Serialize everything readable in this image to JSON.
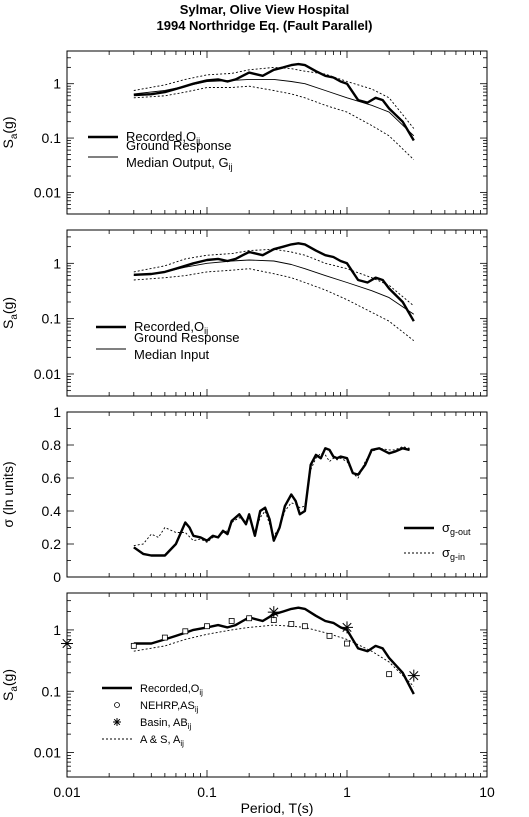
{
  "title_line1": "Sylmar, Olive View Hospital",
  "title_line2": "1994 Northridge Eq. (Fault Parallel)",
  "chart_data": [
    {
      "type": "line",
      "xscale": "log",
      "yscale": "log",
      "xlim": [
        0.01,
        10
      ],
      "ylim": [
        0.004,
        4
      ],
      "ylabel": "S",
      "ylabel_sub": "a",
      "ylabel_suffix": "(g)",
      "ytick_values": [
        0.01,
        0.1,
        1
      ],
      "ytick_labels": [
        "0.01",
        "0.1",
        "1"
      ],
      "series": [
        {
          "style": "thick",
          "x": [
            0.03,
            0.04,
            0.05,
            0.06,
            0.07,
            0.08,
            0.1,
            0.12,
            0.14,
            0.16,
            0.18,
            0.2,
            0.25,
            0.3,
            0.35,
            0.4,
            0.45,
            0.5,
            0.6,
            0.7,
            0.8,
            0.9,
            1.0,
            1.2,
            1.4,
            1.6,
            1.8,
            2.0,
            2.5,
            3.0
          ],
          "y": [
            0.62,
            0.64,
            0.7,
            0.8,
            0.9,
            1.0,
            1.15,
            1.2,
            1.1,
            1.2,
            1.4,
            1.6,
            1.4,
            1.8,
            2.0,
            2.2,
            2.3,
            2.2,
            1.7,
            1.4,
            1.3,
            1.1,
            1.0,
            0.5,
            0.45,
            0.55,
            0.5,
            0.35,
            0.2,
            0.09
          ]
        },
        {
          "style": "thin",
          "x": [
            0.03,
            0.05,
            0.07,
            0.1,
            0.15,
            0.2,
            0.3,
            0.4,
            0.5,
            0.7,
            1.0,
            1.5,
            2.0,
            3.0
          ],
          "y": [
            0.65,
            0.75,
            0.9,
            1.1,
            1.15,
            1.2,
            1.2,
            1.1,
            1.0,
            0.75,
            0.55,
            0.4,
            0.3,
            0.11
          ]
        },
        {
          "style": "dotted",
          "x": [
            0.03,
            0.05,
            0.07,
            0.1,
            0.15,
            0.2,
            0.3,
            0.4,
            0.5,
            0.7,
            1.0,
            1.5,
            2.0,
            3.0
          ],
          "y": [
            0.75,
            0.95,
            1.2,
            1.45,
            1.55,
            1.8,
            2.0,
            1.9,
            1.7,
            1.5,
            1.1,
            0.8,
            0.55,
            0.15
          ]
        },
        {
          "style": "dotted",
          "x": [
            0.03,
            0.05,
            0.07,
            0.1,
            0.15,
            0.2,
            0.3,
            0.4,
            0.5,
            0.7,
            1.0,
            1.5,
            2.0,
            3.0
          ],
          "y": [
            0.55,
            0.6,
            0.7,
            0.85,
            0.85,
            0.9,
            0.75,
            0.65,
            0.55,
            0.4,
            0.3,
            0.17,
            0.11,
            0.04
          ]
        }
      ],
      "legend": [
        {
          "style": "thick",
          "lines": [
            "Recorded,O"
          ],
          "sub": "ij"
        },
        {
          "style": "thin",
          "lines": [
            "Ground Response",
            "Median Output, G"
          ],
          "sub": "ij"
        }
      ]
    },
    {
      "type": "line",
      "xscale": "log",
      "yscale": "log",
      "xlim": [
        0.01,
        10
      ],
      "ylim": [
        0.004,
        4
      ],
      "ylabel": "S",
      "ylabel_sub": "a",
      "ylabel_suffix": "(g)",
      "ytick_values": [
        0.01,
        0.1,
        1
      ],
      "ytick_labels": [
        "0.01",
        "0.1",
        "1"
      ],
      "series": [
        {
          "style": "thick",
          "x": [
            0.03,
            0.04,
            0.05,
            0.06,
            0.07,
            0.08,
            0.1,
            0.12,
            0.14,
            0.16,
            0.18,
            0.2,
            0.25,
            0.3,
            0.35,
            0.4,
            0.45,
            0.5,
            0.6,
            0.7,
            0.8,
            0.9,
            1.0,
            1.2,
            1.4,
            1.6,
            1.8,
            2.0,
            2.5,
            3.0
          ],
          "y": [
            0.62,
            0.64,
            0.7,
            0.8,
            0.9,
            1.0,
            1.15,
            1.2,
            1.1,
            1.2,
            1.4,
            1.6,
            1.4,
            1.8,
            2.0,
            2.2,
            2.3,
            2.2,
            1.7,
            1.4,
            1.3,
            1.1,
            1.0,
            0.5,
            0.45,
            0.55,
            0.5,
            0.35,
            0.2,
            0.09
          ]
        },
        {
          "style": "thin",
          "x": [
            0.03,
            0.05,
            0.07,
            0.1,
            0.15,
            0.2,
            0.3,
            0.4,
            0.5,
            0.7,
            1.0,
            1.5,
            2.0,
            3.0
          ],
          "y": [
            0.6,
            0.7,
            0.85,
            1.0,
            1.1,
            1.15,
            1.1,
            0.95,
            0.8,
            0.6,
            0.45,
            0.32,
            0.24,
            0.12
          ]
        },
        {
          "style": "dotted",
          "x": [
            0.03,
            0.05,
            0.07,
            0.1,
            0.15,
            0.2,
            0.3,
            0.4,
            0.5,
            0.7,
            1.0,
            1.5,
            2.0,
            3.0
          ],
          "y": [
            0.7,
            0.9,
            1.2,
            1.4,
            1.5,
            1.7,
            1.8,
            1.6,
            1.4,
            1.0,
            0.8,
            0.55,
            0.4,
            0.17
          ]
        },
        {
          "style": "dotted",
          "x": [
            0.03,
            0.05,
            0.07,
            0.1,
            0.15,
            0.2,
            0.3,
            0.4,
            0.5,
            0.7,
            1.0,
            1.5,
            2.0,
            3.0
          ],
          "y": [
            0.5,
            0.55,
            0.6,
            0.7,
            0.75,
            0.8,
            0.65,
            0.55,
            0.45,
            0.33,
            0.22,
            0.13,
            0.09,
            0.04
          ]
        }
      ],
      "legend": [
        {
          "style": "thick",
          "lines": [
            "Recorded,O"
          ],
          "sub": "ij"
        },
        {
          "style": "thin",
          "lines": [
            "Ground Response",
            "Median Input"
          ],
          "sub": ""
        }
      ]
    },
    {
      "type": "line",
      "xscale": "log",
      "yscale": "linear",
      "xlim": [
        0.01,
        10
      ],
      "ylim": [
        0,
        1
      ],
      "ylabel": "σ (ln units)",
      "ylabel_sub": "",
      "ylabel_suffix": "",
      "ytick_values": [
        0,
        0.2,
        0.4,
        0.6,
        0.8,
        1
      ],
      "ytick_labels": [
        "0",
        "0.2",
        "0.4",
        "0.6",
        "0.8",
        "1"
      ],
      "series": [
        {
          "style": "thick",
          "x": [
            0.03,
            0.035,
            0.04,
            0.05,
            0.06,
            0.07,
            0.075,
            0.08,
            0.09,
            0.1,
            0.11,
            0.12,
            0.13,
            0.14,
            0.15,
            0.17,
            0.19,
            0.2,
            0.22,
            0.24,
            0.26,
            0.28,
            0.3,
            0.33,
            0.36,
            0.4,
            0.43,
            0.46,
            0.5,
            0.55,
            0.6,
            0.65,
            0.7,
            0.75,
            0.8,
            0.85,
            0.9,
            1.0,
            1.1,
            1.2,
            1.35,
            1.5,
            1.7,
            2.0,
            2.2,
            2.5,
            2.8
          ],
          "y": [
            0.18,
            0.14,
            0.13,
            0.13,
            0.2,
            0.33,
            0.3,
            0.25,
            0.24,
            0.22,
            0.25,
            0.24,
            0.28,
            0.26,
            0.34,
            0.38,
            0.32,
            0.38,
            0.25,
            0.4,
            0.42,
            0.35,
            0.22,
            0.3,
            0.43,
            0.5,
            0.46,
            0.38,
            0.4,
            0.68,
            0.74,
            0.72,
            0.78,
            0.77,
            0.73,
            0.72,
            0.73,
            0.72,
            0.63,
            0.62,
            0.68,
            0.77,
            0.78,
            0.75,
            0.76,
            0.78,
            0.77
          ]
        },
        {
          "style": "dotted",
          "x": [
            0.03,
            0.035,
            0.04,
            0.045,
            0.05,
            0.06,
            0.07,
            0.08,
            0.09,
            0.1,
            0.11,
            0.12,
            0.13,
            0.14,
            0.15,
            0.17,
            0.19,
            0.2,
            0.22,
            0.24,
            0.26,
            0.28,
            0.3,
            0.33,
            0.36,
            0.4,
            0.43,
            0.46,
            0.5,
            0.55,
            0.6,
            0.65,
            0.7,
            0.75,
            0.8,
            0.85,
            0.9,
            1.0,
            1.1,
            1.2,
            1.35,
            1.5,
            1.7,
            2.0,
            2.2,
            2.5,
            2.8
          ],
          "y": [
            0.19,
            0.2,
            0.26,
            0.24,
            0.3,
            0.27,
            0.27,
            0.22,
            0.23,
            0.21,
            0.24,
            0.24,
            0.27,
            0.28,
            0.33,
            0.36,
            0.34,
            0.37,
            0.27,
            0.36,
            0.4,
            0.32,
            0.25,
            0.3,
            0.4,
            0.45,
            0.44,
            0.42,
            0.43,
            0.65,
            0.72,
            0.75,
            0.74,
            0.7,
            0.72,
            0.71,
            0.72,
            0.7,
            0.63,
            0.6,
            0.7,
            0.76,
            0.78,
            0.77,
            0.77,
            0.79,
            0.78
          ]
        }
      ],
      "legend": [
        {
          "style": "thick",
          "lines": [
            "σ"
          ],
          "sub": "g-out"
        },
        {
          "style": "dotted",
          "lines": [
            "σ"
          ],
          "sub": "g-in"
        }
      ]
    },
    {
      "type": "line",
      "xscale": "log",
      "yscale": "log",
      "xlim": [
        0.01,
        10
      ],
      "ylim": [
        0.004,
        4
      ],
      "ylabel": "S",
      "ylabel_sub": "a",
      "ylabel_suffix": "(g)",
      "ytick_values": [
        0.01,
        0.1,
        1
      ],
      "ytick_labels": [
        "0.01",
        "0.1",
        "1"
      ],
      "xtick_values": [
        0.01,
        0.1,
        1,
        10
      ],
      "xtick_labels": [
        "0.01",
        "0.1",
        "1",
        "10"
      ],
      "xlabel": "Period, T(s)",
      "series": [
        {
          "style": "thick",
          "x": [
            0.03,
            0.04,
            0.05,
            0.06,
            0.07,
            0.08,
            0.1,
            0.12,
            0.14,
            0.16,
            0.18,
            0.2,
            0.25,
            0.3,
            0.35,
            0.4,
            0.45,
            0.5,
            0.6,
            0.7,
            0.8,
            0.9,
            1.0,
            1.2,
            1.4,
            1.6,
            1.8,
            2.0,
            2.5,
            3.0
          ],
          "y": [
            0.6,
            0.6,
            0.7,
            0.8,
            0.9,
            1.0,
            1.1,
            1.2,
            1.1,
            1.2,
            1.4,
            1.6,
            1.4,
            1.8,
            2.0,
            2.2,
            2.3,
            2.2,
            1.7,
            1.4,
            1.3,
            1.1,
            1.0,
            0.5,
            0.45,
            0.55,
            0.5,
            0.35,
            0.2,
            0.09
          ]
        },
        {
          "style": "dotted",
          "x": [
            0.03,
            0.05,
            0.07,
            0.1,
            0.15,
            0.2,
            0.3,
            0.4,
            0.5,
            0.7,
            1.0,
            1.5,
            2.0,
            3.0
          ],
          "y": [
            0.45,
            0.55,
            0.7,
            0.85,
            1.0,
            1.1,
            1.2,
            1.15,
            1.1,
            0.9,
            0.7,
            0.45,
            0.3,
            0.12
          ]
        },
        {
          "style": "square",
          "x": [
            0.03,
            0.05,
            0.07,
            0.1,
            0.15,
            0.2,
            0.3,
            0.4,
            0.5,
            0.75,
            1.0,
            2.0
          ],
          "y": [
            0.55,
            0.75,
            0.95,
            1.15,
            1.4,
            1.55,
            1.45,
            1.25,
            1.15,
            0.8,
            0.6,
            0.19
          ]
        },
        {
          "style": "star",
          "x": [
            0.01,
            0.3,
            1.0,
            3.0
          ],
          "y": [
            0.6,
            1.95,
            1.1,
            0.18
          ]
        }
      ],
      "legend": [
        {
          "style": "thick",
          "lines": [
            "Recorded,O"
          ],
          "sub": "ij"
        },
        {
          "style": "circle",
          "lines": [
            "NEHRP,AS"
          ],
          "sub": "ij"
        },
        {
          "style": "star",
          "lines": [
            "Basin, AB"
          ],
          "sub": "ij"
        },
        {
          "style": "dotted",
          "lines": [
            "A & S, A"
          ],
          "sub": "ij"
        }
      ]
    }
  ]
}
